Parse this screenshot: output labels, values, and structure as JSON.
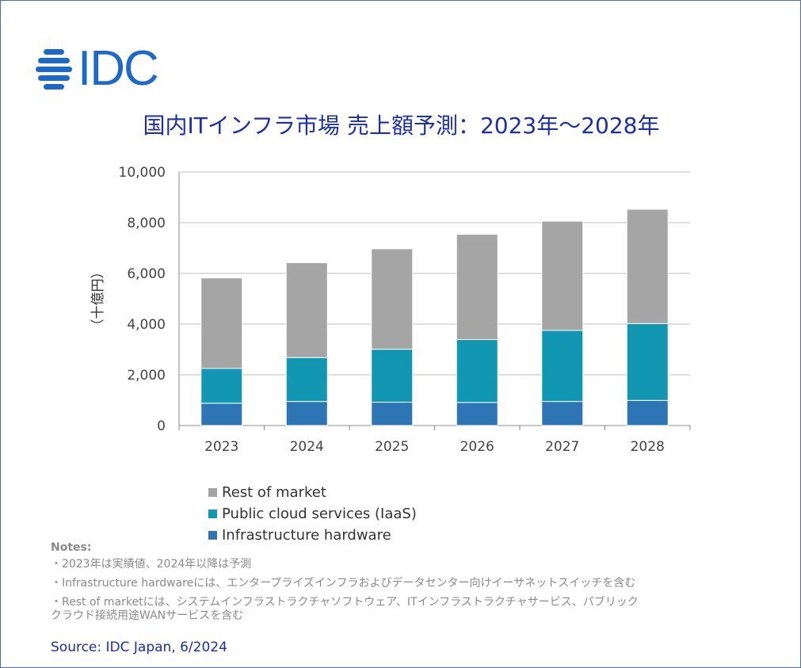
{
  "brand": {
    "name": "IDC",
    "color": "#1c69c9"
  },
  "title": "国内ITインフラ市場 売上額予測：2023年～2028年",
  "chart_data": {
    "type": "bar",
    "stacked": true,
    "categories": [
      "2023",
      "2024",
      "2025",
      "2026",
      "2027",
      "2028"
    ],
    "series": [
      {
        "name": "Infrastructure hardware",
        "color": "#2e75b6",
        "values": [
          880,
          950,
          920,
          910,
          950,
          990
        ]
      },
      {
        "name": "Public cloud services (IaaS)",
        "color": "#1297b3",
        "values": [
          1370,
          1730,
          2090,
          2480,
          2800,
          3030
        ]
      },
      {
        "name": "Rest of market",
        "color": "#a5a5a5",
        "values": [
          3570,
          3740,
          3960,
          4150,
          4310,
          4510
        ]
      }
    ],
    "ylabel": "（十億円）",
    "ylim": [
      0,
      10000
    ],
    "yticks": [
      "0",
      "2,000",
      "4,000",
      "6,000",
      "8,000",
      "10,000"
    ],
    "grid": true,
    "legend_position": "bottom"
  },
  "legend": [
    {
      "label": "Rest of market",
      "color": "#a5a5a5"
    },
    {
      "label": "Public cloud services (IaaS)",
      "color": "#1297b3"
    },
    {
      "label": "Infrastructure hardware",
      "color": "#2e75b6"
    }
  ],
  "notes": {
    "title": "Notes:",
    "items": [
      "・2023年は実績値、2024年以降は予測",
      "・Infrastructure hardwareには、エンタープライズインフラおよびデータセンター向けイーサネットスイッチを含む",
      "・Rest of marketには、システムインフラストラクチャソフトウェア、ITインフラストラクチャサービス、パブリック\nクラウド接続用途WANサービスを含む"
    ]
  },
  "source": "Source: IDC Japan, 6/2024"
}
